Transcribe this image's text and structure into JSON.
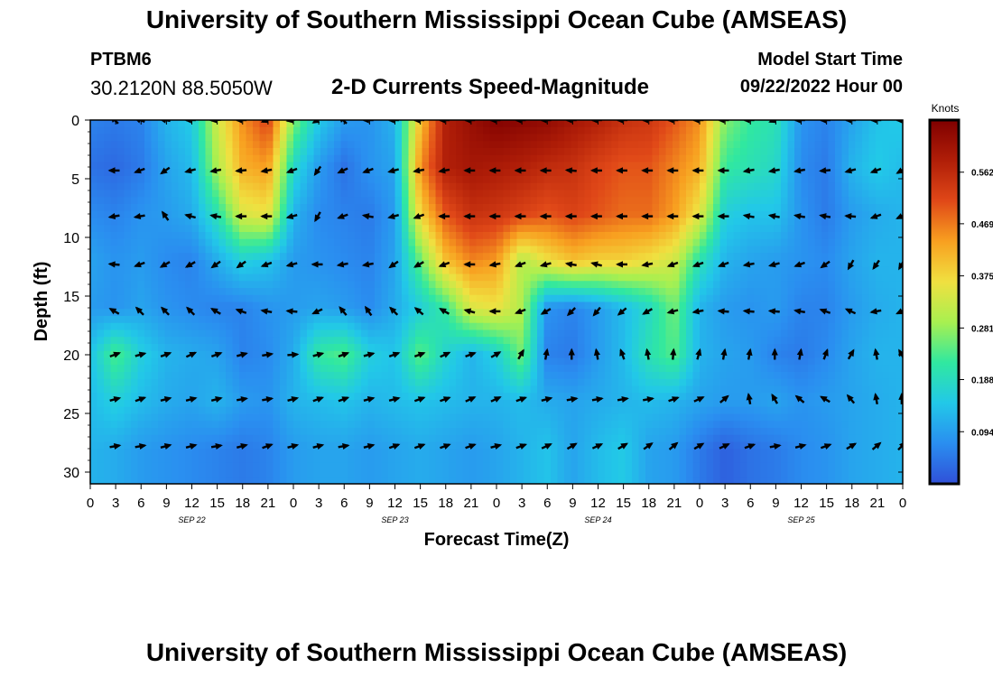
{
  "header": {
    "title": "University of Southern Mississippi Ocean Cube (AMSEAS)",
    "station_id": "PTBM6",
    "station_coords": "30.2120N  88.5050W",
    "chart_title": "2-D Currents Speed-Magnitude",
    "model_start_label": "Model Start Time",
    "model_start_time": "09/22/2022 Hour 00"
  },
  "footer": {
    "title": "University of Southern Mississippi Ocean Cube (AMSEAS)"
  },
  "colors": {
    "colormap": [
      "#3050d8",
      "#2a8ef0",
      "#22c8e8",
      "#30e8a0",
      "#a8f050",
      "#f0e040",
      "#f8a020",
      "#e04818",
      "#b01e08",
      "#800000"
    ],
    "arrow": "#000000",
    "frame": "#000000"
  },
  "chart_data": {
    "type": "heatmap",
    "title": "2-D Currents Speed-Magnitude",
    "xlabel": "Forecast Time(Z)",
    "ylabel": "Depth (ft)",
    "colorbar_label": "Knots",
    "colorbar_ticks": [
      0.094,
      0.188,
      0.281,
      0.375,
      0.469,
      0.562
    ],
    "colorbar_tick_labels": [
      "0.094",
      "0.188",
      "0.281",
      "0.375",
      "0.469",
      "0.562"
    ],
    "colorbar_range": [
      0.0,
      0.656
    ],
    "xlim": [
      0,
      96
    ],
    "ylim": [
      31,
      0
    ],
    "x_ticks": [
      0,
      3,
      6,
      9,
      12,
      15,
      18,
      21,
      24,
      27,
      30,
      33,
      36,
      39,
      42,
      45,
      48,
      51,
      54,
      57,
      60,
      63,
      66,
      69,
      72,
      75,
      78,
      81,
      84,
      87,
      90,
      93,
      96
    ],
    "x_tick_labels": [
      "0",
      "3",
      "6",
      "9",
      "12",
      "15",
      "18",
      "21",
      "0",
      "3",
      "6",
      "9",
      "12",
      "15",
      "18",
      "21",
      "0",
      "3",
      "6",
      "9",
      "12",
      "15",
      "18",
      "21",
      "0",
      "3",
      "6",
      "9",
      "12",
      "15",
      "18",
      "21",
      "0"
    ],
    "date_labels": [
      {
        "hour": 12,
        "label": "SEP 22"
      },
      {
        "hour": 36,
        "label": "SEP 23"
      },
      {
        "hour": 60,
        "label": "SEP 24"
      },
      {
        "hour": 84,
        "label": "SEP 25"
      }
    ],
    "y_ticks": [
      0,
      5,
      10,
      15,
      20,
      25,
      30
    ],
    "y_tick_labels": [
      "0",
      "5",
      "10",
      "15",
      "20",
      "25",
      "30"
    ],
    "grid_hours": [
      0,
      3,
      6,
      9,
      12,
      15,
      18,
      21,
      24,
      27,
      30,
      33,
      36,
      39,
      42,
      45,
      48,
      51,
      54,
      57,
      60,
      63,
      66,
      69,
      72,
      75,
      78,
      81,
      84,
      87,
      90,
      93,
      96
    ],
    "depths_ft": [
      0,
      4,
      8,
      12,
      16,
      20,
      24,
      28,
      31
    ],
    "speed_knots": [
      [
        0.06,
        0.05,
        0.06,
        0.12,
        0.15,
        0.33,
        0.45,
        0.52,
        0.27,
        0.15,
        0.09,
        0.08,
        0.12,
        0.4,
        0.58,
        0.62,
        0.65,
        0.64,
        0.63,
        0.6,
        0.58,
        0.55,
        0.54,
        0.5,
        0.45,
        0.27,
        0.22,
        0.2,
        0.08,
        0.06,
        0.1,
        0.14,
        0.15
      ],
      [
        0.04,
        0.03,
        0.05,
        0.1,
        0.13,
        0.3,
        0.42,
        0.44,
        0.18,
        0.09,
        0.04,
        0.08,
        0.1,
        0.45,
        0.58,
        0.6,
        0.59,
        0.58,
        0.56,
        0.55,
        0.52,
        0.5,
        0.5,
        0.46,
        0.42,
        0.22,
        0.2,
        0.18,
        0.07,
        0.05,
        0.12,
        0.15,
        0.13
      ],
      [
        0.07,
        0.06,
        0.08,
        0.09,
        0.11,
        0.2,
        0.34,
        0.36,
        0.12,
        0.07,
        0.06,
        0.05,
        0.09,
        0.38,
        0.5,
        0.55,
        0.54,
        0.52,
        0.5,
        0.52,
        0.5,
        0.48,
        0.48,
        0.44,
        0.35,
        0.16,
        0.14,
        0.14,
        0.08,
        0.05,
        0.09,
        0.11,
        0.12
      ],
      [
        0.1,
        0.08,
        0.09,
        0.07,
        0.06,
        0.11,
        0.16,
        0.14,
        0.09,
        0.08,
        0.07,
        0.06,
        0.1,
        0.25,
        0.4,
        0.46,
        0.44,
        0.3,
        0.36,
        0.4,
        0.38,
        0.38,
        0.36,
        0.33,
        0.2,
        0.12,
        0.1,
        0.09,
        0.08,
        0.07,
        0.1,
        0.12,
        0.12
      ],
      [
        0.09,
        0.08,
        0.1,
        0.08,
        0.07,
        0.06,
        0.06,
        0.08,
        0.09,
        0.1,
        0.09,
        0.07,
        0.11,
        0.16,
        0.22,
        0.34,
        0.36,
        0.3,
        0.08,
        0.06,
        0.09,
        0.13,
        0.18,
        0.26,
        0.12,
        0.09,
        0.08,
        0.09,
        0.06,
        0.06,
        0.09,
        0.11,
        0.12
      ],
      [
        0.14,
        0.24,
        0.16,
        0.12,
        0.11,
        0.1,
        0.06,
        0.07,
        0.11,
        0.22,
        0.24,
        0.16,
        0.14,
        0.25,
        0.17,
        0.12,
        0.16,
        0.26,
        0.06,
        0.05,
        0.09,
        0.13,
        0.2,
        0.24,
        0.12,
        0.1,
        0.09,
        0.06,
        0.05,
        0.07,
        0.1,
        0.12,
        0.12
      ],
      [
        0.13,
        0.16,
        0.13,
        0.11,
        0.1,
        0.12,
        0.09,
        0.08,
        0.12,
        0.13,
        0.14,
        0.12,
        0.13,
        0.14,
        0.13,
        0.12,
        0.12,
        0.13,
        0.11,
        0.1,
        0.11,
        0.12,
        0.13,
        0.12,
        0.1,
        0.09,
        0.09,
        0.1,
        0.08,
        0.09,
        0.1,
        0.11,
        0.12
      ],
      [
        0.12,
        0.11,
        0.09,
        0.08,
        0.07,
        0.06,
        0.05,
        0.06,
        0.09,
        0.1,
        0.1,
        0.09,
        0.1,
        0.11,
        0.1,
        0.09,
        0.1,
        0.12,
        0.14,
        0.1,
        0.13,
        0.15,
        0.1,
        0.09,
        0.05,
        0.02,
        0.04,
        0.05,
        0.07,
        0.08,
        0.1,
        0.11,
        0.12
      ],
      [
        0.12,
        0.11,
        0.09,
        0.08,
        0.07,
        0.06,
        0.05,
        0.06,
        0.09,
        0.1,
        0.1,
        0.09,
        0.1,
        0.11,
        0.1,
        0.09,
        0.1,
        0.12,
        0.14,
        0.1,
        0.13,
        0.15,
        0.1,
        0.09,
        0.05,
        0.02,
        0.04,
        0.05,
        0.07,
        0.08,
        0.1,
        0.11,
        0.12
      ]
    ],
    "arrow_depths_ft": [
      0,
      4.3,
      8.2,
      12.3,
      16.3,
      20,
      23.8,
      27.8
    ],
    "arrow_directions_deg": [
      [
        135,
        160,
        170,
        180,
        185,
        180,
        200,
        190,
        210,
        135,
        180,
        180,
        180,
        180,
        180,
        180,
        180,
        180,
        180,
        180,
        180,
        180,
        180,
        180,
        180,
        180,
        200,
        180,
        180,
        180,
        180,
        180,
        180
      ],
      [
        180,
        200,
        215,
        195,
        190,
        185,
        190,
        200,
        235,
        205,
        200,
        195,
        190,
        190,
        180,
        180,
        180,
        180,
        175,
        180,
        180,
        180,
        180,
        180,
        180,
        190,
        190,
        190,
        185,
        195,
        200,
        210,
        220
      ],
      [
        190,
        190,
        125,
        165,
        170,
        180,
        180,
        195,
        240,
        200,
        170,
        195,
        200,
        180,
        180,
        180,
        180,
        180,
        180,
        180,
        180,
        180,
        180,
        180,
        180,
        170,
        170,
        170,
        170,
        175,
        200,
        205,
        215
      ],
      [
        175,
        200,
        210,
        210,
        215,
        215,
        200,
        195,
        180,
        190,
        190,
        215,
        210,
        200,
        180,
        190,
        200,
        195,
        170,
        165,
        180,
        190,
        200,
        200,
        200,
        190,
        195,
        200,
        215,
        240,
        235,
        240,
        260
      ],
      [
        150,
        135,
        135,
        135,
        150,
        160,
        170,
        175,
        205,
        130,
        125,
        135,
        140,
        150,
        165,
        180,
        200,
        210,
        225,
        230,
        220,
        210,
        195,
        190,
        175,
        175,
        175,
        170,
        160,
        155,
        190,
        205,
        220
      ],
      [
        20,
        15,
        20,
        25,
        20,
        15,
        10,
        5,
        15,
        20,
        15,
        20,
        20,
        25,
        20,
        30,
        60,
        80,
        90,
        100,
        110,
        100,
        85,
        75,
        80,
        80,
        90,
        80,
        70,
        60,
        100,
        120,
        80
      ],
      [
        15,
        20,
        15,
        15,
        15,
        10,
        10,
        15,
        20,
        20,
        15,
        15,
        20,
        20,
        25,
        25,
        20,
        15,
        10,
        10,
        10,
        10,
        20,
        25,
        40,
        100,
        120,
        140,
        150,
        130,
        100,
        90,
        60
      ],
      [
        10,
        10,
        15,
        15,
        10,
        15,
        20,
        15,
        15,
        10,
        15,
        20,
        20,
        20,
        20,
        15,
        20,
        25,
        30,
        25,
        30,
        35,
        40,
        30,
        25,
        20,
        10,
        15,
        20,
        30,
        40,
        45,
        50
      ]
    ]
  }
}
